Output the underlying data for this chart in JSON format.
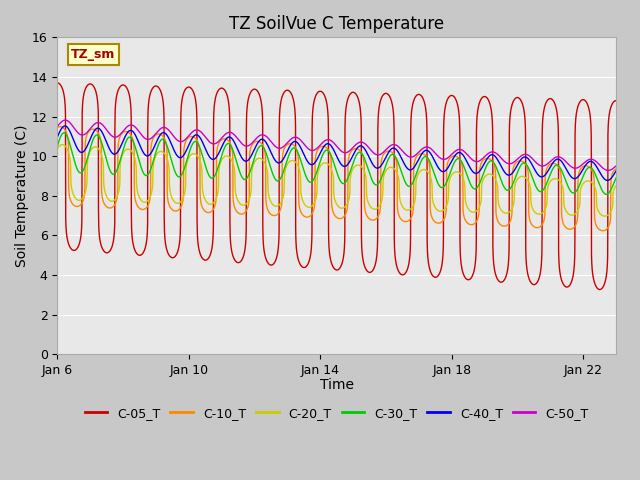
{
  "title": "TZ SoilVue C Temperature",
  "xlabel": "Time",
  "ylabel": "Soil Temperature (C)",
  "ylim": [
    0,
    16
  ],
  "yticks": [
    0,
    2,
    4,
    6,
    8,
    10,
    12,
    14,
    16
  ],
  "xtick_positions": [
    0,
    4,
    8,
    12,
    16
  ],
  "xtick_labels": [
    "Jan 6",
    "Jan 10",
    "Jan 14",
    "Jan 18",
    "Jan 22"
  ],
  "annotation_text": "TZ_sm",
  "annotation_bg": "#ffffcc",
  "annotation_border": "#aa8800",
  "fig_bg": "#c8c8c8",
  "ax_bg": "#e8e8e8",
  "grid_color": "#ffffff",
  "series": [
    {
      "name": "C-05_T",
      "color": "#cc0000",
      "base_start": 9.5,
      "base_end": 8.0,
      "amp_start": 4.2,
      "amp_end": 4.8,
      "phase": 1.5707963,
      "sharpness": 8
    },
    {
      "name": "C-10_T",
      "color": "#ff8800",
      "base_start": 9.5,
      "base_end": 7.8,
      "amp_start": 2.0,
      "amp_end": 1.6,
      "phase": 1.0,
      "sharpness": 6
    },
    {
      "name": "C-20_T",
      "color": "#cccc00",
      "base_start": 9.2,
      "base_end": 7.8,
      "amp_start": 1.4,
      "amp_end": 0.85,
      "phase": 0.6,
      "sharpness": 3
    },
    {
      "name": "C-30_T",
      "color": "#00cc00",
      "base_start": 10.2,
      "base_end": 8.7,
      "amp_start": 1.0,
      "amp_end": 0.65,
      "phase": 0.3,
      "sharpness": 2
    },
    {
      "name": "C-40_T",
      "color": "#0000ee",
      "base_start": 10.9,
      "base_end": 9.2,
      "amp_start": 0.65,
      "amp_end": 0.45,
      "phase": 0.1,
      "sharpness": 2
    },
    {
      "name": "C-50_T",
      "color": "#cc00cc",
      "base_start": 11.5,
      "base_end": 9.5,
      "amp_start": 0.35,
      "amp_end": 0.25,
      "phase": 0.0,
      "sharpness": 2
    }
  ],
  "legend_order": [
    "C-05_T",
    "C-10_T",
    "C-20_T",
    "C-30_T",
    "C-40_T",
    "C-50_T"
  ],
  "line_colors": [
    "#cc0000",
    "#ff8800",
    "#cccc00",
    "#00cc00",
    "#0000ee",
    "#cc00cc"
  ]
}
